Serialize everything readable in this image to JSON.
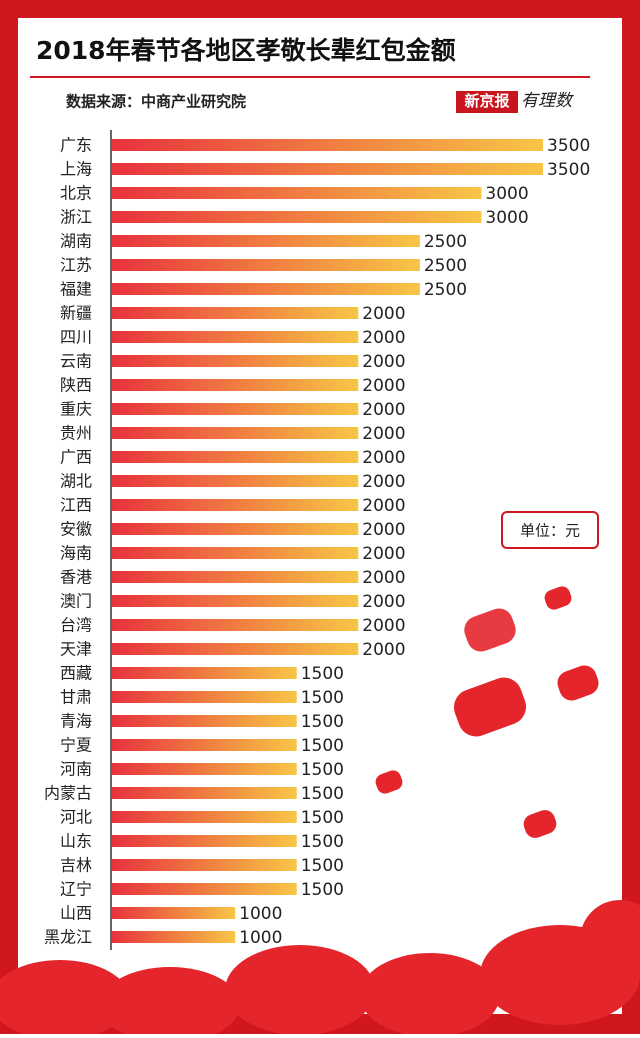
{
  "chart_data": {
    "type": "hbar",
    "title": "2018年春节各地区孝敬长辈红包金额",
    "source": "数据来源：中商产业研究院",
    "logo": "新京报",
    "logo_sub": "有理数",
    "unit_note": "单位：元",
    "categories": [
      "广东",
      "上海",
      "北京",
      "浙江",
      "湖南",
      "江苏",
      "福建",
      "新疆",
      "四川",
      "云南",
      "陕西",
      "重庆",
      "贵州",
      "广西",
      "湖北",
      "江西",
      "安徽",
      "海南",
      "香港",
      "澳门",
      "台湾",
      "天津",
      "西藏",
      "甘肃",
      "青海",
      "宁夏",
      "河南",
      "内蒙古",
      "河北",
      "山东",
      "吉林",
      "辽宁",
      "山西",
      "黑龙江"
    ],
    "values": [
      3500,
      3500,
      3000,
      3000,
      2500,
      2500,
      2500,
      2000,
      2000,
      2000,
      2000,
      2000,
      2000,
      2000,
      2000,
      2000,
      2000,
      2000,
      2000,
      2000,
      2000,
      2000,
      1500,
      1500,
      1500,
      1500,
      1500,
      1500,
      1500,
      1500,
      1500,
      1500,
      1000,
      1000
    ],
    "color": "#e8323d",
    "color_end": "#f7c646"
  }
}
